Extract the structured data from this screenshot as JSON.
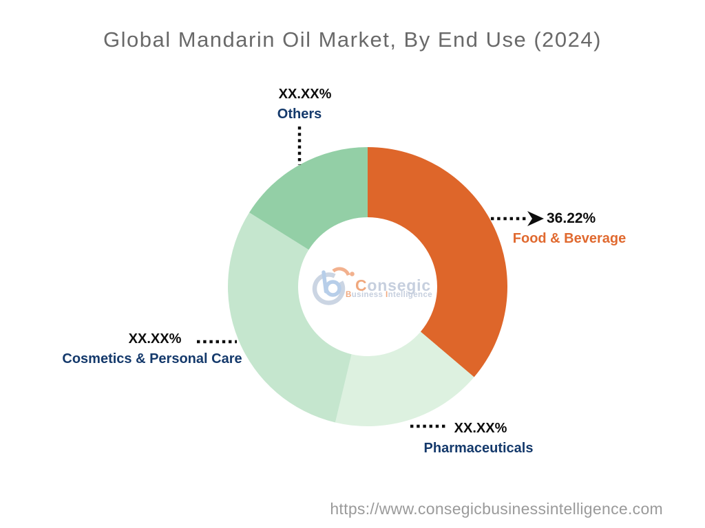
{
  "chart_data": {
    "type": "donut",
    "title": "Global Mandarin Oil Market, By End Use (2024)",
    "unit": "%",
    "start_angle_deg": 0,
    "direction": "clockwise",
    "inner_radius_ratio": 0.5,
    "legend": "none",
    "label_style": "callouts-with-dotted-leaders",
    "segments": [
      {
        "id": "food-beverage",
        "label": "Food & Beverage",
        "display_value": "36.22%",
        "arc_percent": 36.22,
        "value_hidden": false,
        "color": "#DE662A",
        "label_color": "#E0692F"
      },
      {
        "id": "pharmaceuticals",
        "label": "Pharmaceuticals",
        "display_value": "XX.XX%",
        "arc_percent": 17.5,
        "value_hidden": true,
        "arc_percent_estimated": true,
        "color": "#DDF1E0",
        "label_color": "#14396B"
      },
      {
        "id": "cosmetics-personal-care",
        "label": "Cosmetics & Personal Care",
        "display_value": "XX.XX%",
        "arc_percent": 30.2,
        "value_hidden": true,
        "arc_percent_estimated": true,
        "color": "#C5E6CE",
        "label_color": "#14396B"
      },
      {
        "id": "others",
        "label": "Others",
        "display_value": "XX.XX%",
        "arc_percent": 16.08,
        "value_hidden": true,
        "arc_percent_estimated": true,
        "color": "#93CFA6",
        "label_color": "#14396B"
      }
    ],
    "value_text_color": "#0c0c0c",
    "title_color": "#696969"
  },
  "watermark": {
    "brand_initial": "C",
    "brand_rest": "onsegic",
    "tagline_b": "B",
    "tagline_usiness": "usiness ",
    "tagline_i": "I",
    "tagline_rest": "ntelligence"
  },
  "footer": {
    "url": "https://www.consegicbusinessintelligence.com"
  }
}
